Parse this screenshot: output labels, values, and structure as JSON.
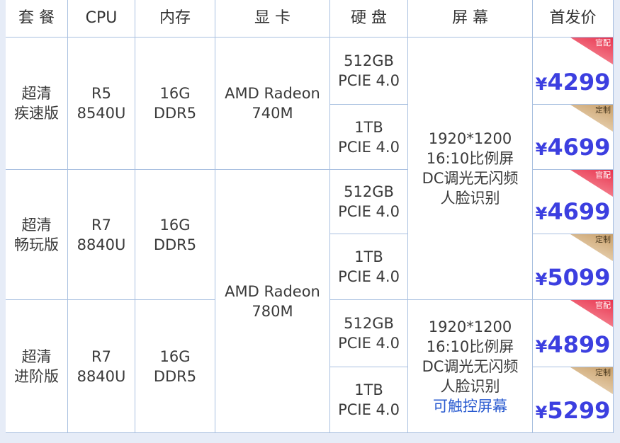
{
  "header": [
    "套 餐",
    "CPU",
    "内存",
    "显 卡",
    "硬 盘",
    "屏 幕",
    "首发价"
  ],
  "groups": [
    {
      "name": [
        "超清",
        "疾速版"
      ],
      "cpu": [
        "R5",
        "8540U"
      ],
      "ram": [
        "16G",
        "DDR5"
      ]
    },
    {
      "name": [
        "超清",
        "畅玩版"
      ],
      "cpu": [
        "R7",
        "8840U"
      ],
      "ram": [
        "16G",
        "DDR5"
      ]
    },
    {
      "name": [
        "超清",
        "进阶版"
      ],
      "cpu": [
        "R7",
        "8840U"
      ],
      "ram": [
        "16G",
        "DDR5"
      ]
    }
  ],
  "gpu": [
    [
      "AMD Radeon",
      "740M"
    ],
    [
      "AMD Radeon",
      "780M"
    ]
  ],
  "storage": [
    [
      "512GB",
      "PCIE 4.0"
    ],
    [
      "1TB",
      "PCIE 4.0"
    ],
    [
      "512GB",
      "PCIE 4.0"
    ],
    [
      "1TB",
      "PCIE 4.0"
    ],
    [
      "512GB",
      "PCIE 4.0"
    ],
    [
      "1TB",
      "PCIE 4.0"
    ]
  ],
  "screen": [
    [
      "1920*1200",
      "16:10比例屏",
      "DC调光无闪频",
      "人脸识别"
    ],
    [
      "1920*1200",
      "16:10比例屏",
      "DC调光无闪频",
      "人脸识别",
      "可触控屏幕"
    ]
  ],
  "prices": [
    {
      "currency": "¥",
      "amount": "4299",
      "badge": "官配"
    },
    {
      "currency": "¥",
      "amount": "4699",
      "badge": "定制"
    },
    {
      "currency": "¥",
      "amount": "4699",
      "badge": "官配"
    },
    {
      "currency": "¥",
      "amount": "5099",
      "badge": "定制"
    },
    {
      "currency": "¥",
      "amount": "4899",
      "badge": "官配"
    },
    {
      "currency": "¥",
      "amount": "5299",
      "badge": "定制"
    }
  ],
  "colors": {
    "price": "#3c3fe0",
    "official_badge": "#e8344f",
    "custom_badge": "#c9a06a",
    "touch": "#2a5bd0",
    "grid": "#a9c0e0"
  }
}
